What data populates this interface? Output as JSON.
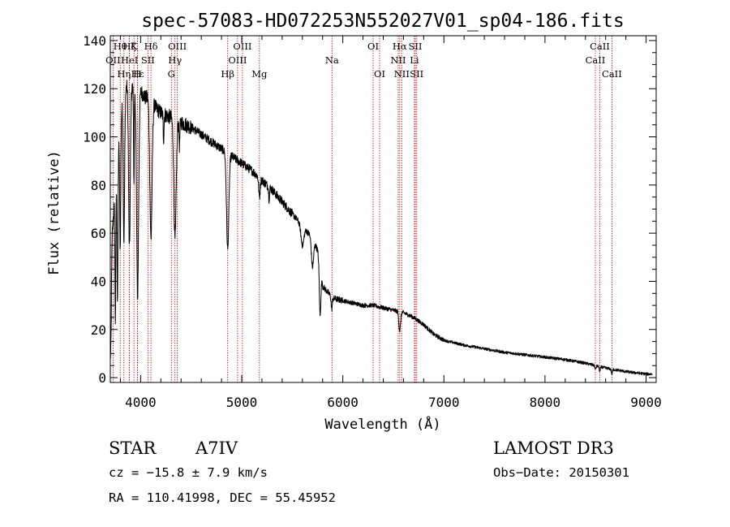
{
  "chart_data": {
    "type": "line",
    "title": "spec-57083-HD072253N552027V01_sp04-186.fits",
    "xlabel": "Wavelength (Å)",
    "ylabel": "Flux (relative)",
    "xlim": [
      3700,
      9100
    ],
    "ylim": [
      -2,
      142
    ],
    "x_ticks": [
      4000,
      5000,
      6000,
      7000,
      8000,
      9000
    ],
    "y_ticks": [
      0,
      20,
      40,
      60,
      80,
      100,
      120,
      140
    ],
    "series": [
      {
        "name": "flux",
        "continuum": [
          [
            3700,
            15
          ],
          [
            3720,
            60
          ],
          [
            3760,
            85
          ],
          [
            3800,
            110
          ],
          [
            3840,
            118
          ],
          [
            3880,
            124
          ],
          [
            3920,
            120
          ],
          [
            3960,
            118
          ],
          [
            4000,
            119
          ],
          [
            4050,
            116
          ],
          [
            4100,
            118
          ],
          [
            4150,
            112
          ],
          [
            4200,
            110
          ],
          [
            4300,
            108
          ],
          [
            4400,
            106
          ],
          [
            4500,
            104
          ],
          [
            4600,
            101
          ],
          [
            4700,
            98
          ],
          [
            4800,
            95
          ],
          [
            4900,
            92
          ],
          [
            5000,
            89
          ],
          [
            5100,
            86
          ],
          [
            5200,
            82
          ],
          [
            5300,
            78
          ],
          [
            5400,
            73
          ],
          [
            5500,
            68
          ],
          [
            5600,
            63
          ],
          [
            5700,
            58
          ],
          [
            5750,
            53
          ],
          [
            5800,
            38
          ],
          [
            5900,
            33
          ],
          [
            6000,
            32
          ],
          [
            6100,
            31
          ],
          [
            6200,
            30
          ],
          [
            6300,
            30
          ],
          [
            6400,
            29
          ],
          [
            6500,
            28
          ],
          [
            6600,
            27
          ],
          [
            6700,
            25
          ],
          [
            6800,
            22
          ],
          [
            6900,
            18
          ],
          [
            7000,
            15.5
          ],
          [
            7100,
            14.5
          ],
          [
            7200,
            13.5
          ],
          [
            7400,
            12
          ],
          [
            7600,
            10.5
          ],
          [
            7800,
            9.5
          ],
          [
            8000,
            8.5
          ],
          [
            8200,
            7.5
          ],
          [
            8400,
            6
          ],
          [
            8600,
            4
          ],
          [
            8800,
            2.5
          ],
          [
            9000,
            1.5
          ]
        ],
        "absorption_features": [
          {
            "center": 3750,
            "depth": 55,
            "width": 6
          },
          {
            "center": 3771,
            "depth": 60,
            "width": 7
          },
          {
            "center": 3798,
            "depth": 55,
            "width": 8
          },
          {
            "center": 3835,
            "depth": 60,
            "width": 10
          },
          {
            "center": 3889,
            "depth": 70,
            "width": 12
          },
          {
            "center": 3934,
            "depth": 40,
            "width": 5
          },
          {
            "center": 3970,
            "depth": 85,
            "width": 14
          },
          {
            "center": 4102,
            "depth": 60,
            "width": 16
          },
          {
            "center": 4227,
            "depth": 10,
            "width": 6
          },
          {
            "center": 4340,
            "depth": 50,
            "width": 16
          },
          {
            "center": 4384,
            "depth": 10,
            "width": 6
          },
          {
            "center": 4861,
            "depth": 40,
            "width": 16
          },
          {
            "center": 5175,
            "depth": 8,
            "width": 10
          },
          {
            "center": 5270,
            "depth": 5,
            "width": 6
          },
          {
            "center": 5600,
            "depth": 8,
            "width": 20
          },
          {
            "center": 5700,
            "depth": 12,
            "width": 15
          },
          {
            "center": 5775,
            "depth": 20,
            "width": 10
          },
          {
            "center": 5890,
            "depth": 5,
            "width": 8
          },
          {
            "center": 6563,
            "depth": 8,
            "width": 12
          },
          {
            "center": 8500,
            "depth": 1.5,
            "width": 8
          },
          {
            "center": 8542,
            "depth": 2,
            "width": 8
          },
          {
            "center": 8662,
            "depth": 2,
            "width": 8
          }
        ]
      }
    ],
    "spectral_lines": [
      {
        "label": "Hθ",
        "wavelength": 3798,
        "row": 0
      },
      {
        "label": "Hδ",
        "wavelength": 4102,
        "row": 0
      },
      {
        "label": "OII",
        "wavelength": 3727,
        "row": 1
      },
      {
        "label": "Hη",
        "wavelength": 3835,
        "row": 2
      },
      {
        "label": "Hζ",
        "wavelength": 3889,
        "row": 0
      },
      {
        "label": "HeI",
        "wavelength": 3889,
        "row": 1
      },
      {
        "label": "K",
        "wavelength": 3934,
        "row": 0
      },
      {
        "label": "H",
        "wavelength": 3968,
        "row": 2
      },
      {
        "label": "Hε",
        "wavelength": 3970,
        "row": 2
      },
      {
        "label": "SII",
        "wavelength": 4072,
        "row": 1
      },
      {
        "label": "OIII",
        "wavelength": 4363,
        "row": 0
      },
      {
        "label": "Hγ",
        "wavelength": 4340,
        "row": 1
      },
      {
        "label": "G",
        "wavelength": 4304,
        "row": 2
      },
      {
        "label": "Hβ",
        "wavelength": 4861,
        "row": 2
      },
      {
        "label": "OIII",
        "wavelength": 4959,
        "row": 1
      },
      {
        "label": "OIII",
        "wavelength": 5007,
        "row": 0
      },
      {
        "label": "Mg",
        "wavelength": 5175,
        "row": 2
      },
      {
        "label": "Na",
        "wavelength": 5893,
        "row": 1
      },
      {
        "label": "OI",
        "wavelength": 6300,
        "row": 0
      },
      {
        "label": "OI",
        "wavelength": 6364,
        "row": 2
      },
      {
        "label": "Hα",
        "wavelength": 6563,
        "row": 0
      },
      {
        "label": "NII",
        "wavelength": 6548,
        "row": 1
      },
      {
        "label": "NII",
        "wavelength": 6583,
        "row": 2
      },
      {
        "label": "SII",
        "wavelength": 6717,
        "row": 0
      },
      {
        "label": "Li",
        "wavelength": 6708,
        "row": 1
      },
      {
        "label": "SII",
        "wavelength": 6731,
        "row": 2
      },
      {
        "label": "CaII",
        "wavelength": 8542,
        "row": 0
      },
      {
        "label": "CaII",
        "wavelength": 8498,
        "row": 1
      },
      {
        "label": "CaII",
        "wavelength": 8662,
        "row": 2
      }
    ]
  },
  "info": {
    "class": "STAR",
    "subclass": "A7IV",
    "survey": "LAMOST DR3",
    "cz": "cz = −15.8 ± 7.9 km/s",
    "obs_date": "Obs−Date: 20150301",
    "coords": "RA = 110.41998, DEC =  55.45952"
  },
  "colors": {
    "spectrum": "#000000",
    "line_markers": "#cc0000",
    "axes": "#000000",
    "background": "#ffffff"
  }
}
